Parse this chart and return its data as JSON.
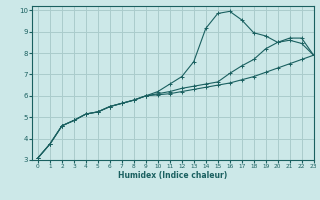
{
  "xlabel": "Humidex (Indice chaleur)",
  "bg_color": "#cce8e8",
  "grid_color": "#aacccc",
  "line_color": "#1a6060",
  "xlim": [
    -0.5,
    23
  ],
  "ylim": [
    3,
    10.2
  ],
  "xticks": [
    0,
    1,
    2,
    3,
    4,
    5,
    6,
    7,
    8,
    9,
    10,
    11,
    12,
    13,
    14,
    15,
    16,
    17,
    18,
    19,
    20,
    21,
    22,
    23
  ],
  "yticks": [
    3,
    4,
    5,
    6,
    7,
    8,
    9,
    10
  ],
  "line1_x": [
    0,
    1,
    2,
    3,
    4,
    5,
    6,
    7,
    8,
    9,
    10,
    11,
    12,
    13,
    14,
    15,
    16,
    17,
    18,
    19,
    20,
    21,
    22,
    23
  ],
  "line1_y": [
    3.1,
    3.75,
    4.6,
    4.85,
    5.15,
    5.25,
    5.5,
    5.65,
    5.8,
    6.0,
    6.2,
    6.55,
    6.9,
    7.6,
    9.15,
    9.85,
    9.95,
    9.55,
    8.95,
    8.8,
    8.5,
    8.6,
    8.45,
    7.9
  ],
  "line2_x": [
    0,
    1,
    2,
    3,
    4,
    5,
    6,
    7,
    8,
    9,
    10,
    11,
    12,
    13,
    14,
    15,
    16,
    17,
    18,
    19,
    20,
    21,
    22,
    23
  ],
  "line2_y": [
    3.1,
    3.75,
    4.6,
    4.85,
    5.15,
    5.25,
    5.5,
    5.65,
    5.8,
    6.0,
    6.1,
    6.2,
    6.35,
    6.45,
    6.55,
    6.65,
    7.05,
    7.4,
    7.7,
    8.2,
    8.5,
    8.7,
    8.7,
    7.9
  ],
  "line3_x": [
    0,
    1,
    2,
    3,
    4,
    5,
    6,
    7,
    8,
    9,
    10,
    11,
    12,
    13,
    14,
    15,
    16,
    17,
    18,
    19,
    20,
    21,
    22,
    23
  ],
  "line3_y": [
    3.1,
    3.75,
    4.6,
    4.85,
    5.15,
    5.25,
    5.5,
    5.65,
    5.8,
    6.0,
    6.05,
    6.1,
    6.2,
    6.3,
    6.4,
    6.5,
    6.6,
    6.75,
    6.9,
    7.1,
    7.3,
    7.5,
    7.7,
    7.9
  ]
}
